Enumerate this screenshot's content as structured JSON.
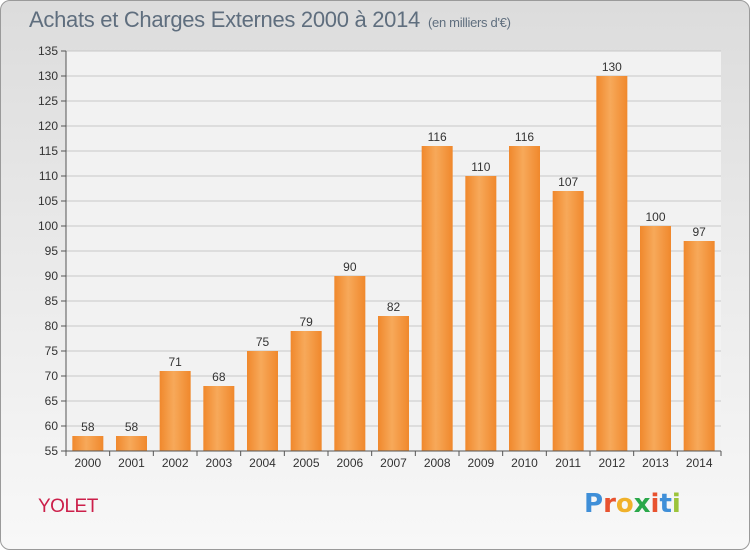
{
  "title": "Achats et Charges Externes 2000 à 2014",
  "subtitle": "(en milliers d'€)",
  "commune": "YOLET",
  "logo": {
    "letters": [
      "P",
      "r",
      "o",
      "x",
      "i",
      "t",
      "i"
    ],
    "colors": [
      "#3f8fd8",
      "#e8522f",
      "#f0b12a",
      "#2aa84a",
      "#e8522f",
      "#3f8fd8",
      "#9cc43a"
    ]
  },
  "chart_data": {
    "type": "bar",
    "categories": [
      "2000",
      "2001",
      "2002",
      "2003",
      "2004",
      "2005",
      "2006",
      "2007",
      "2008",
      "2009",
      "2010",
      "2011",
      "2012",
      "2013",
      "2014"
    ],
    "values": [
      58,
      58,
      71,
      68,
      75,
      79,
      90,
      82,
      116,
      110,
      116,
      107,
      130,
      100,
      97
    ],
    "ylim": [
      55,
      135
    ],
    "yticks": [
      55,
      60,
      65,
      70,
      75,
      80,
      85,
      90,
      95,
      100,
      105,
      110,
      115,
      120,
      125,
      130,
      135
    ],
    "grid": true,
    "bar_color": "#f0882c",
    "bar_color_light": "#f7a95a"
  }
}
